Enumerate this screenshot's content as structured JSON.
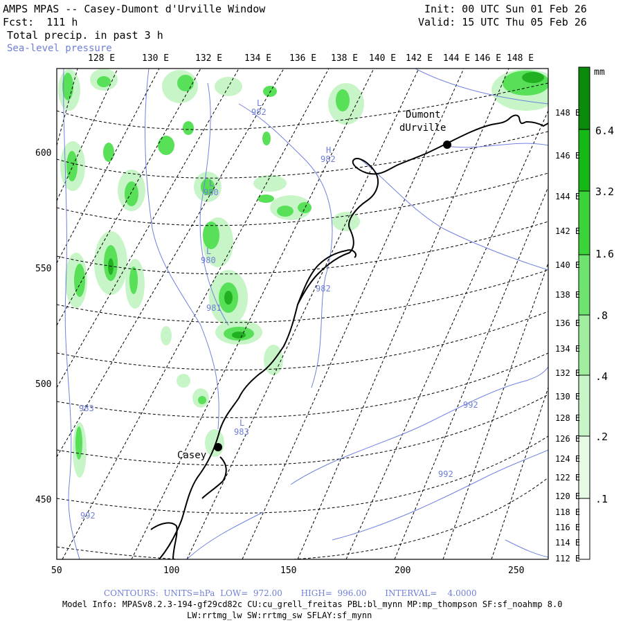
{
  "header": {
    "title": "AMPS MPAS -- Casey-Dumont d'Urville Window",
    "forecast": "Fcst:  111 h",
    "field_primary": "Total precip. in past 3 h",
    "field_secondary": "Sea-level pressure",
    "init": "Init: 00 UTC Sun 01 Feb 26",
    "valid": "Valid: 15 UTC Thu 05 Feb 26"
  },
  "map": {
    "top_lon_labels": [
      "128 E",
      "130 E",
      "132 E",
      "134 E",
      "136 E",
      "138 E",
      "140 E",
      "142 E",
      "144 E",
      "146 E",
      "148 E"
    ],
    "right_lat_labels": [
      "148 E",
      "146 E",
      "144 E",
      "142 E",
      "140 E",
      "138 E",
      "136 E",
      "134 E",
      "132 E",
      "130 E",
      "128 E",
      "126 E",
      "124 E",
      "122 E",
      "120 E",
      "118 E",
      "116 E",
      "114 E",
      "112 E"
    ],
    "x_axis_labels": [
      "50",
      "100",
      "150",
      "200",
      "250"
    ],
    "y_axis_labels": [
      "600",
      "550",
      "500",
      "450"
    ],
    "stations": [
      {
        "name_line1": "Dumont",
        "name_line2": "dUrville"
      },
      {
        "name_line1": "Casey",
        "name_line2": ""
      }
    ],
    "pressure_labels": [
      {
        "letter": "L",
        "value": "982"
      },
      {
        "letter": "H",
        "value": "982"
      },
      {
        "letter": "L",
        "value": "980"
      },
      {
        "letter": "L",
        "value": "980"
      },
      {
        "letter": "",
        "value": "982"
      },
      {
        "letter": "",
        "value": "981"
      },
      {
        "letter": "L",
        "value": "983"
      },
      {
        "letter": "",
        "value": "983"
      },
      {
        "letter": "",
        "value": "992"
      },
      {
        "letter": "",
        "value": "992"
      },
      {
        "letter": "",
        "value": "992"
      }
    ],
    "colors": {
      "precip_light": "#c8f5c8",
      "precip_mid": "#58e058",
      "precip_dark": "#20b020",
      "isobar": "#7080e0",
      "grid": "#000000"
    }
  },
  "colorbar": {
    "unit": "mm",
    "levels": [
      ".1",
      ".2",
      ".4",
      ".8",
      "1.6",
      "3.2",
      "6.4"
    ],
    "colors": [
      "#ffffff",
      "#e6fae6",
      "#c8f5c8",
      "#a0eda0",
      "#6ee46e",
      "#3ad43a",
      "#16b816",
      "#0a8a0a"
    ]
  },
  "footer": {
    "contours_label": "CONTOURS:  UNITS=hPa  LOW=  972.00       HIGH=  996.00       INTERVAL=    4.0000",
    "model_info": "Model Info: MPASv8.2.3-194-gf29cd82c CU:cu_grell_freitas PBL:bl_mynn MP:mp_thompson SF:sf_noahmp 8.0",
    "model_info2": "LW:rrtmg_lw SW:rrtmg_sw SFLAY:sf_mynn"
  }
}
